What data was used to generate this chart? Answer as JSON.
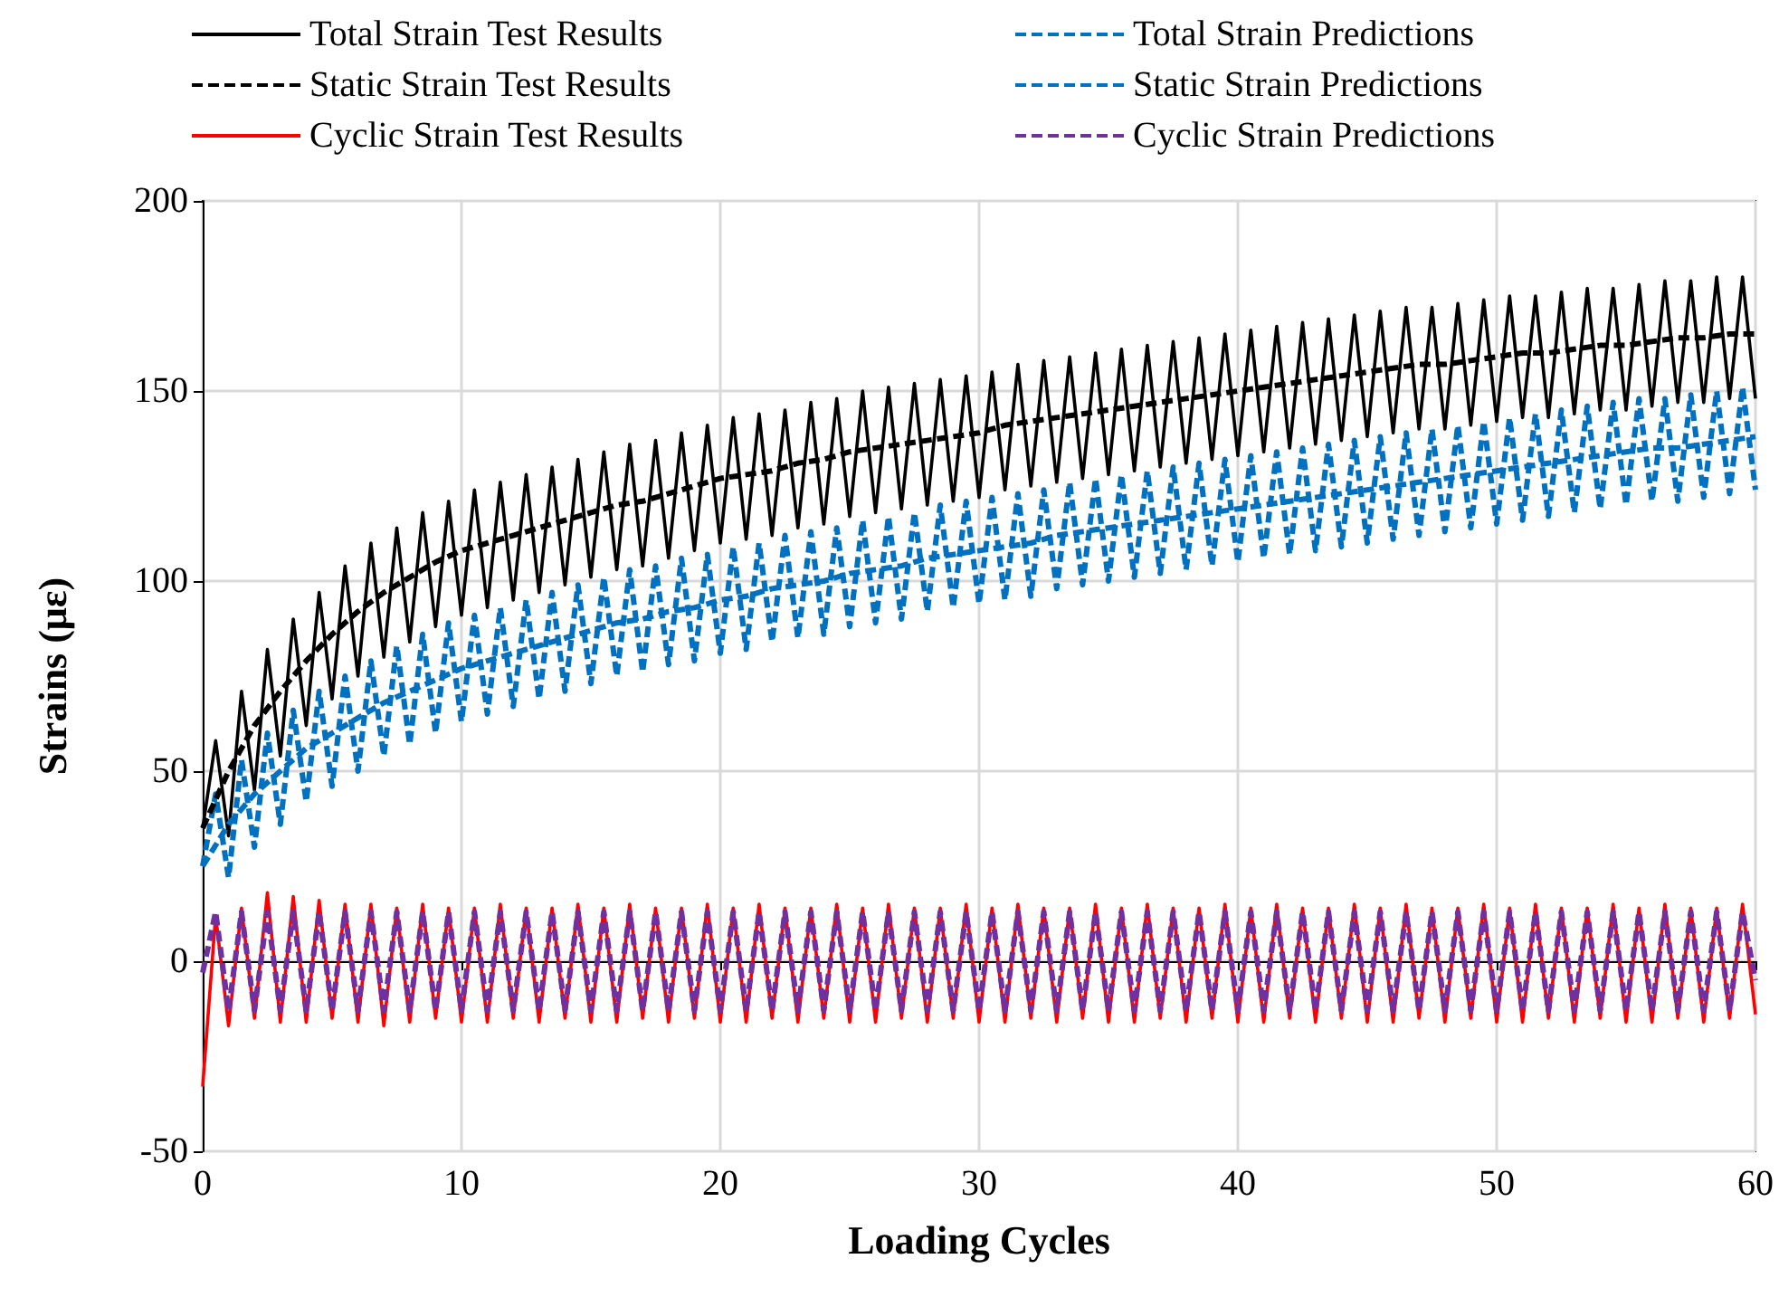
{
  "chart_data": {
    "type": "line",
    "xlabel": "Loading Cycles",
    "ylabel": "Strains (με)",
    "xlim": [
      0,
      60
    ],
    "xticks": [
      0,
      10,
      20,
      30,
      40,
      50,
      60
    ],
    "ylim": [
      -50,
      200
    ],
    "yticks": [
      -50,
      0,
      50,
      100,
      150,
      200
    ],
    "grid": true,
    "legend": "top",
    "marker": "none",
    "x": [
      0,
      0.5,
      1,
      1.5,
      2,
      2.5,
      3,
      3.5,
      4,
      4.5,
      5,
      5.5,
      6,
      6.5,
      7,
      7.5,
      8,
      8.5,
      9,
      9.5,
      10,
      10.5,
      11,
      11.5,
      12,
      12.5,
      13,
      13.5,
      14,
      14.5,
      15,
      15.5,
      16,
      16.5,
      17,
      17.5,
      18,
      18.5,
      19,
      19.5,
      20,
      20.5,
      21,
      21.5,
      22,
      22.5,
      23,
      23.5,
      24,
      24.5,
      25,
      25.5,
      26,
      26.5,
      27,
      27.5,
      28,
      28.5,
      29,
      29.5,
      30,
      30.5,
      31,
      31.5,
      32,
      32.5,
      33,
      33.5,
      34,
      34.5,
      35,
      35.5,
      36,
      36.5,
      37,
      37.5,
      38,
      38.5,
      39,
      39.5,
      40,
      40.5,
      41,
      41.5,
      42,
      42.5,
      43,
      43.5,
      44,
      44.5,
      45,
      45.5,
      46,
      46.5,
      47,
      47.5,
      48,
      48.5,
      49,
      49.5,
      50,
      50.5,
      51,
      51.5,
      52,
      52.5,
      53,
      53.5,
      54,
      54.5,
      55,
      55.5,
      56,
      56.5,
      57,
      57.5,
      58,
      58.5,
      59,
      59.5,
      60
    ],
    "series": [
      {
        "name": "Total Strain Test Results",
        "color": "#000000",
        "line_style": "solid",
        "values": [
          35,
          58,
          33,
          71,
          45,
          82,
          54,
          90,
          62,
          97,
          69,
          104,
          75,
          110,
          80,
          114,
          84,
          118,
          88,
          121,
          91,
          124,
          93,
          126,
          95,
          128,
          97,
          130,
          99,
          132,
          101,
          134,
          103,
          136,
          104,
          137,
          106,
          139,
          108,
          141,
          110,
          143,
          111,
          144,
          112,
          145,
          114,
          147,
          115,
          148,
          117,
          150,
          118,
          151,
          119,
          152,
          120,
          153,
          121,
          154,
          122,
          155,
          124,
          157,
          125,
          158,
          126,
          159,
          127,
          160,
          128,
          161,
          129,
          162,
          130,
          163,
          131,
          164,
          132,
          165,
          133,
          166,
          134,
          167,
          135,
          168,
          136,
          169,
          137,
          170,
          138,
          171,
          139,
          172,
          140,
          172,
          140,
          173,
          141,
          174,
          142,
          175,
          143,
          175,
          143,
          176,
          144,
          177,
          145,
          177,
          145,
          178,
          146,
          179,
          147,
          179,
          147,
          180,
          148,
          180,
          148
        ]
      },
      {
        "name": "Total Strain Predictions",
        "color": "#0070c0",
        "line_style": "dashed",
        "values": [
          25,
          44,
          22,
          53,
          30,
          60,
          36,
          66,
          42,
          71,
          46,
          75,
          50,
          79,
          54,
          83,
          57,
          86,
          60,
          89,
          63,
          91,
          65,
          93,
          67,
          95,
          69,
          97,
          71,
          99,
          73,
          101,
          75,
          103,
          76,
          104,
          78,
          106,
          79,
          107,
          81,
          109,
          82,
          110,
          84,
          112,
          85,
          113,
          86,
          114,
          88,
          116,
          89,
          117,
          90,
          118,
          92,
          120,
          93,
          121,
          94,
          122,
          95,
          123,
          96,
          124,
          98,
          126,
          99,
          127,
          100,
          128,
          101,
          129,
          102,
          130,
          103,
          131,
          104,
          132,
          105,
          133,
          106,
          134,
          107,
          135,
          108,
          136,
          109,
          137,
          110,
          138,
          111,
          139,
          112,
          140,
          113,
          141,
          114,
          142,
          115,
          143,
          116,
          144,
          117,
          145,
          118,
          146,
          119,
          147,
          120,
          148,
          121,
          148,
          121,
          149,
          122,
          150,
          123,
          151,
          124
        ]
      },
      {
        "name": "Static Strain Test Results",
        "color": "#000000",
        "line_style": "dashed",
        "x": [
          0,
          1,
          2,
          3,
          4,
          5,
          6,
          7,
          8,
          9,
          10,
          11,
          12,
          13,
          14,
          15,
          16,
          17,
          18,
          19,
          20,
          21,
          22,
          23,
          24,
          25,
          26,
          27,
          28,
          29,
          30,
          31,
          32,
          33,
          34,
          35,
          36,
          37,
          38,
          39,
          40,
          41,
          42,
          43,
          44,
          45,
          46,
          47,
          48,
          49,
          50,
          51,
          52,
          53,
          54,
          55,
          56,
          57,
          58,
          59,
          60
        ],
        "values": [
          35,
          50,
          62,
          71,
          79,
          86,
          92,
          97,
          101,
          105,
          108,
          110,
          112,
          114,
          116,
          118,
          120,
          121,
          123,
          125,
          127,
          128,
          129,
          131,
          132,
          134,
          135,
          136,
          137,
          138,
          139,
          141,
          142,
          143,
          144,
          145,
          146,
          147,
          148,
          149,
          150,
          151,
          152,
          153,
          154,
          155,
          156,
          157,
          157,
          158,
          159,
          160,
          160,
          161,
          162,
          162,
          163,
          164,
          164,
          165,
          165
        ]
      },
      {
        "name": "Static Strain Predictions",
        "color": "#0070c0",
        "line_style": "dashed",
        "x": [
          0,
          1,
          2,
          3,
          4,
          5,
          6,
          7,
          8,
          9,
          10,
          11,
          12,
          13,
          14,
          15,
          16,
          17,
          18,
          19,
          20,
          21,
          22,
          23,
          24,
          25,
          26,
          27,
          28,
          29,
          30,
          31,
          32,
          33,
          34,
          35,
          36,
          37,
          38,
          39,
          40,
          41,
          42,
          43,
          44,
          45,
          46,
          47,
          48,
          49,
          50,
          51,
          52,
          53,
          54,
          55,
          56,
          57,
          58,
          59,
          60
        ],
        "values": [
          25,
          36,
          44,
          50,
          56,
          60,
          64,
          68,
          71,
          74,
          77,
          79,
          81,
          83,
          85,
          87,
          89,
          90,
          92,
          93,
          95,
          96,
          98,
          99,
          100,
          102,
          103,
          104,
          106,
          107,
          108,
          109,
          110,
          112,
          113,
          114,
          115,
          116,
          117,
          118,
          119,
          120,
          121,
          122,
          123,
          124,
          125,
          126,
          127,
          128,
          129,
          130,
          131,
          132,
          133,
          134,
          135,
          135,
          136,
          137,
          138
        ]
      },
      {
        "name": "Cyclic Strain Test Results",
        "color": "#ff0000",
        "line_style": "solid",
        "values": [
          -33,
          12,
          -17,
          14,
          -15,
          18,
          -16,
          17,
          -16,
          16,
          -15,
          15,
          -16,
          15,
          -17,
          14,
          -16,
          15,
          -15,
          14,
          -16,
          14,
          -16,
          15,
          -15,
          14,
          -16,
          14,
          -15,
          15,
          -16,
          14,
          -16,
          15,
          -15,
          14,
          -16,
          14,
          -15,
          15,
          -16,
          14,
          -16,
          15,
          -15,
          14,
          -16,
          14,
          -15,
          15,
          -16,
          14,
          -16,
          15,
          -15,
          14,
          -16,
          14,
          -15,
          15,
          -16,
          14,
          -16,
          15,
          -15,
          14,
          -16,
          14,
          -15,
          15,
          -16,
          14,
          -16,
          15,
          -15,
          14,
          -16,
          14,
          -15,
          15,
          -16,
          14,
          -16,
          15,
          -15,
          14,
          -16,
          14,
          -15,
          15,
          -16,
          14,
          -16,
          15,
          -15,
          14,
          -16,
          14,
          -15,
          15,
          -16,
          14,
          -16,
          15,
          -15,
          14,
          -16,
          14,
          -15,
          15,
          -16,
          14,
          -16,
          15,
          -15,
          14,
          -16,
          14,
          -15,
          15,
          -14
        ]
      },
      {
        "name": "Cyclic Strain Predictions",
        "color": "#7030a0",
        "line_style": "dashed",
        "values": [
          -3,
          13,
          -13,
          13,
          -13,
          13,
          -13,
          13,
          -13,
          13,
          -13,
          13,
          -13,
          13,
          -13,
          13,
          -13,
          13,
          -13,
          13,
          -13,
          13,
          -13,
          13,
          -13,
          13,
          -13,
          13,
          -13,
          13,
          -13,
          13,
          -13,
          13,
          -13,
          13,
          -13,
          13,
          -13,
          13,
          -13,
          13,
          -13,
          13,
          -13,
          13,
          -13,
          13,
          -13,
          13,
          -13,
          13,
          -13,
          13,
          -13,
          13,
          -13,
          13,
          -13,
          13,
          -13,
          13,
          -13,
          13,
          -13,
          13,
          -13,
          13,
          -13,
          13,
          -13,
          13,
          -13,
          13,
          -13,
          13,
          -13,
          13,
          -13,
          13,
          -13,
          13,
          -13,
          13,
          -13,
          13,
          -13,
          13,
          -13,
          13,
          -13,
          13,
          -13,
          13,
          -13,
          13,
          -13,
          13,
          -13,
          13,
          -13,
          13,
          -13,
          13,
          -13,
          13,
          -13,
          13,
          -13,
          13,
          -13,
          13,
          -13,
          13,
          -13,
          13,
          -13,
          13,
          -13,
          13,
          -5
        ]
      }
    ]
  }
}
